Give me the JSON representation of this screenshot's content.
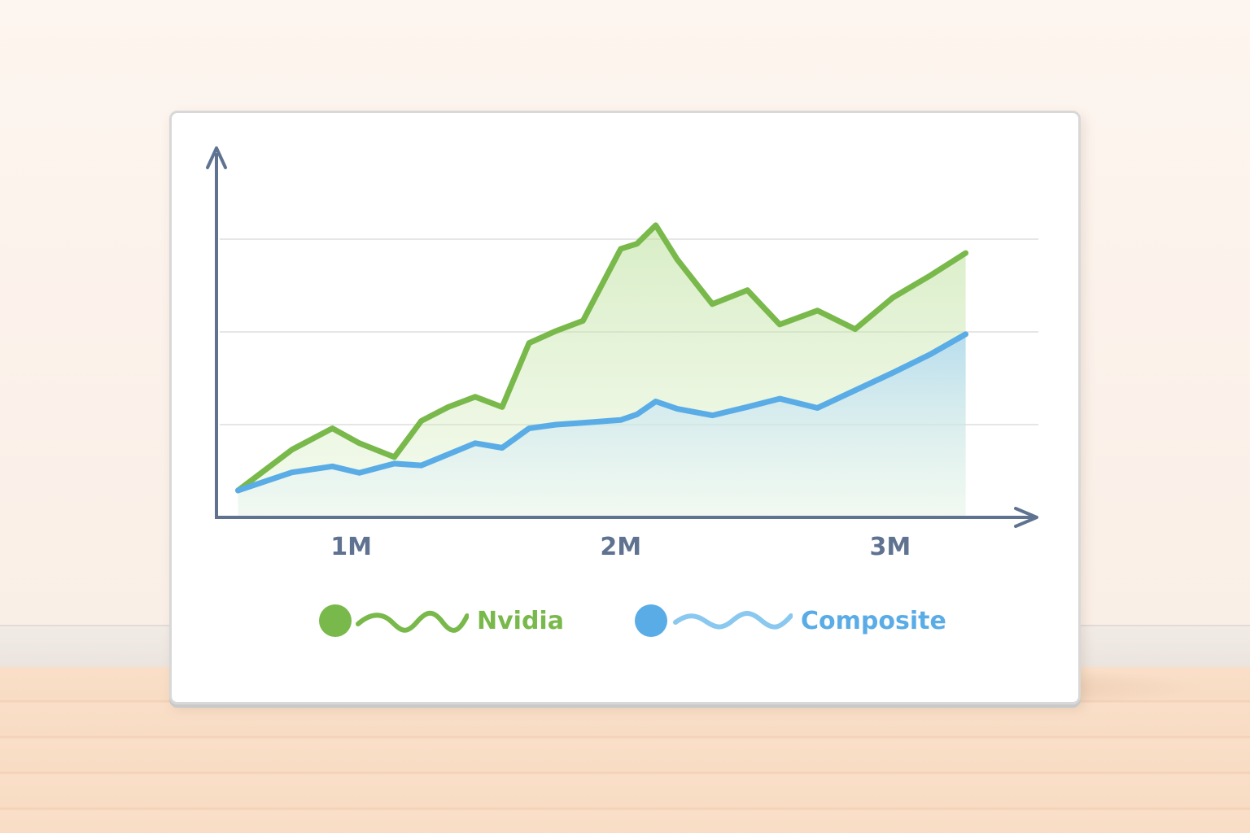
{
  "chart_data": {
    "type": "area",
    "x": [
      0.58,
      0.78,
      0.93,
      1.03,
      1.16,
      1.26,
      1.36,
      1.46,
      1.56,
      1.66,
      1.76,
      1.86,
      2.0,
      2.06,
      2.13,
      2.21,
      2.34,
      2.47,
      2.59,
      2.73,
      2.87,
      3.01,
      3.15,
      3.28
    ],
    "series": [
      {
        "name": "Nvidia",
        "color": "#79b94b",
        "values": [
          5.8,
          14.6,
          19.2,
          16.0,
          13.0,
          20.8,
          23.8,
          26.0,
          23.8,
          37.6,
          40.2,
          42.4,
          57.9,
          59.0,
          63.0,
          55.6,
          46.0,
          49.0,
          41.6,
          44.6,
          40.6,
          47.4,
          52.2,
          57.0
        ]
      },
      {
        "name": "Composite",
        "color": "#5aace6",
        "values": [
          5.8,
          9.7,
          11.0,
          9.6,
          11.6,
          11.2,
          13.6,
          16.0,
          15.0,
          19.2,
          20.0,
          20.4,
          21.0,
          22.2,
          25.0,
          23.4,
          22.0,
          23.8,
          25.6,
          23.6,
          27.4,
          31.2,
          35.2,
          39.5
        ]
      }
    ],
    "xticks": [
      {
        "value": 1,
        "label": "1M"
      },
      {
        "value": 2,
        "label": "2M"
      },
      {
        "value": 3,
        "label": "3M"
      }
    ],
    "xlim": [
      0.5,
      3.55
    ],
    "ylim": [
      0,
      80
    ],
    "ygridlines": [
      20,
      40,
      60
    ],
    "grid": "horizontal",
    "legend_position": "bottom",
    "title": "",
    "xlabel": "",
    "ylabel": ""
  },
  "colors": {
    "axis": "#5f7391",
    "grid": "#e6e6e6",
    "nvidia": "#79b94b",
    "composite": "#5aace6"
  }
}
